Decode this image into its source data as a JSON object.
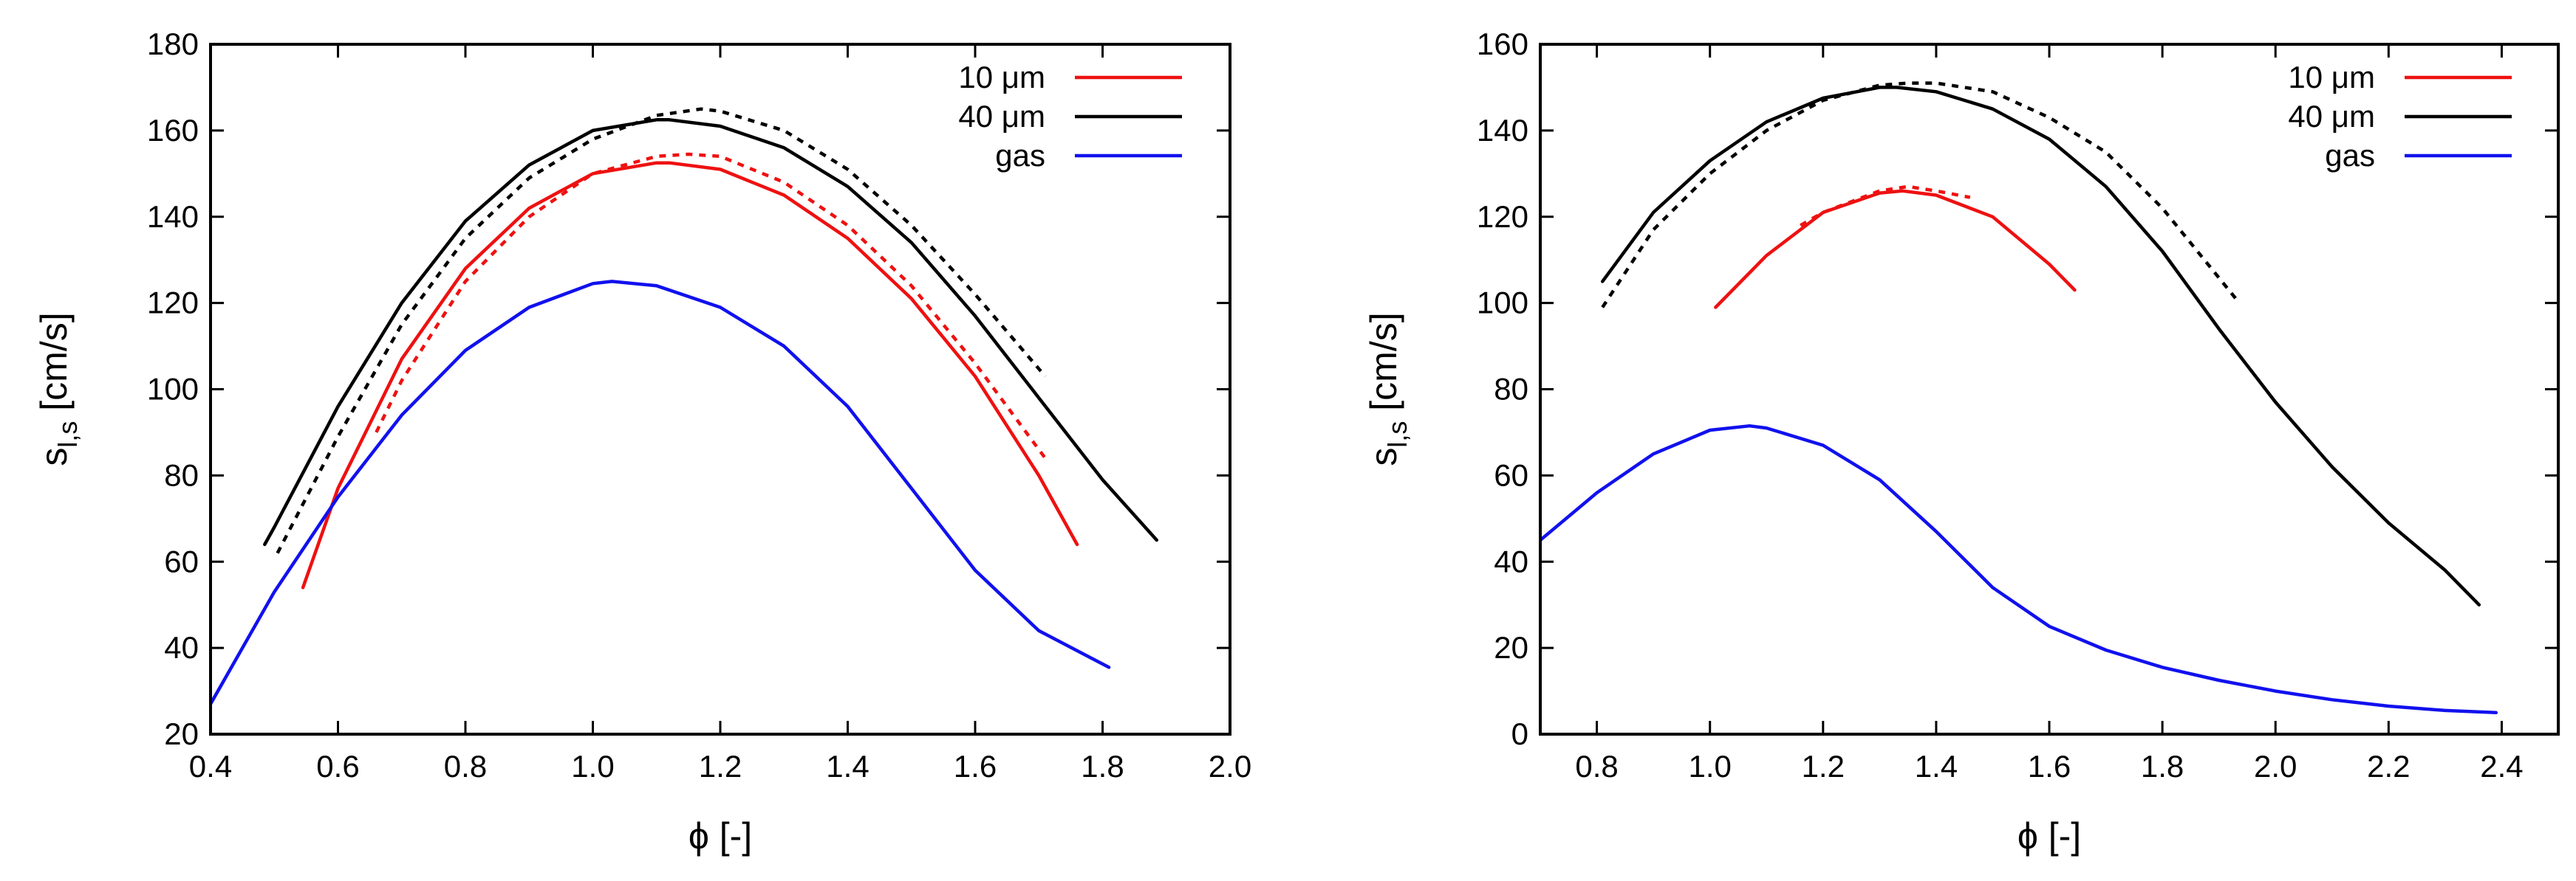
{
  "figure": {
    "description_domain": "Chart"
  },
  "colors": {
    "red": "#ee1111",
    "black": "#000000",
    "blue": "#1111ee"
  },
  "chart_data": [
    {
      "type": "line",
      "panel": "left",
      "xlabel": "ϕ [-]",
      "ylabel_main": "s",
      "ylabel_sub": "l,s",
      "ylabel_unit": " [cm/s]",
      "xlim": [
        0.4,
        2.0
      ],
      "ylim": [
        20,
        180
      ],
      "xticks": [
        "0.4",
        "0.6",
        "0.8",
        "1.0",
        "1.2",
        "1.4",
        "1.6",
        "1.8",
        "2.0"
      ],
      "yticks": [
        "20",
        "40",
        "60",
        "80",
        "100",
        "120",
        "140",
        "160",
        "180"
      ],
      "legend_position": "top-right",
      "legend": [
        {
          "label": "10 μm",
          "color": "#ee1111"
        },
        {
          "label": "40 μm",
          "color": "#000000"
        },
        {
          "label": "gas",
          "color": "#1111ee"
        }
      ],
      "series": [
        {
          "name": "10 μm",
          "style": "solid",
          "color": "#ee1111",
          "x": [
            0.545,
            0.6,
            0.7,
            0.8,
            0.9,
            1.0,
            1.1,
            1.12,
            1.2,
            1.3,
            1.4,
            1.5,
            1.6,
            1.7,
            1.76
          ],
          "y": [
            54,
            77,
            107,
            128,
            142,
            150,
            152.5,
            152.5,
            151,
            145,
            135,
            121,
            103,
            80,
            64
          ]
        },
        {
          "name": "10 μm",
          "style": "dashed",
          "color": "#ee1111",
          "x": [
            0.66,
            0.7,
            0.8,
            0.9,
            1.0,
            1.1,
            1.15,
            1.2,
            1.3,
            1.4,
            1.5,
            1.6,
            1.71
          ],
          "y": [
            90,
            102,
            125,
            140,
            150,
            154,
            154.5,
            154,
            148,
            138,
            124,
            106,
            84
          ]
        },
        {
          "name": "40 μm",
          "style": "solid",
          "color": "#000000",
          "x": [
            0.485,
            0.5,
            0.6,
            0.7,
            0.8,
            0.9,
            1.0,
            1.1,
            1.12,
            1.2,
            1.3,
            1.4,
            1.5,
            1.6,
            1.7,
            1.8,
            1.885
          ],
          "y": [
            64,
            68,
            96,
            120,
            139,
            152,
            160,
            162.5,
            162.5,
            161,
            156,
            147,
            134,
            117,
            98,
            79,
            65
          ]
        },
        {
          "name": "40 μm",
          "style": "dashed",
          "color": "#000000",
          "x": [
            0.505,
            0.6,
            0.7,
            0.8,
            0.9,
            1.0,
            1.1,
            1.17,
            1.2,
            1.3,
            1.4,
            1.5,
            1.6,
            1.71
          ],
          "y": [
            62,
            89,
            115,
            135,
            149,
            158,
            163.5,
            165,
            164.5,
            160,
            151,
            138,
            122,
            103
          ]
        },
        {
          "name": "gas",
          "style": "solid",
          "color": "#1111ee",
          "x": [
            0.4,
            0.5,
            0.6,
            0.7,
            0.8,
            0.9,
            1.0,
            1.03,
            1.1,
            1.2,
            1.3,
            1.4,
            1.5,
            1.6,
            1.7,
            1.81
          ],
          "y": [
            27,
            53,
            75,
            94,
            109,
            119,
            124.5,
            125,
            124,
            119,
            110,
            96,
            77,
            58,
            44,
            35.5
          ]
        }
      ]
    },
    {
      "type": "line",
      "panel": "right",
      "xlabel": "ϕ [-]",
      "ylabel_main": "s",
      "ylabel_sub": "l,s",
      "ylabel_unit": " [cm/s]",
      "xlim": [
        0.7,
        2.5
      ],
      "ylim": [
        0,
        160
      ],
      "xticks": [
        "0.8",
        "1.0",
        "1.2",
        "1.4",
        "1.6",
        "1.8",
        "2.0",
        "2.2",
        "2.4"
      ],
      "yticks": [
        "0",
        "20",
        "40",
        "60",
        "80",
        "100",
        "120",
        "140",
        "160"
      ],
      "legend_position": "top-right",
      "legend": [
        {
          "label": "10 μm",
          "color": "#ee1111"
        },
        {
          "label": "40 μm",
          "color": "#000000"
        },
        {
          "label": "gas",
          "color": "#1111ee"
        }
      ],
      "series": [
        {
          "name": "10 μm",
          "style": "solid",
          "color": "#ee1111",
          "x": [
            1.01,
            1.1,
            1.2,
            1.3,
            1.34,
            1.4,
            1.5,
            1.6,
            1.645
          ],
          "y": [
            99,
            111,
            121,
            125.5,
            126,
            125,
            120,
            109,
            103
          ]
        },
        {
          "name": "10 μm",
          "style": "dashed",
          "color": "#ee1111",
          "x": [
            1.16,
            1.2,
            1.3,
            1.35,
            1.4,
            1.46
          ],
          "y": [
            118,
            121,
            126,
            127,
            126,
            124.5
          ]
        },
        {
          "name": "40 μm",
          "style": "solid",
          "color": "#000000",
          "x": [
            0.81,
            0.9,
            1.0,
            1.1,
            1.2,
            1.3,
            1.33,
            1.4,
            1.5,
            1.6,
            1.7,
            1.8,
            1.9,
            2.0,
            2.1,
            2.2,
            2.3,
            2.36
          ],
          "y": [
            105,
            121,
            133,
            142,
            147.5,
            150,
            150,
            149,
            145,
            138,
            127,
            112,
            94,
            77,
            62,
            49,
            38,
            30
          ]
        },
        {
          "name": "40 μm",
          "style": "dashed",
          "color": "#000000",
          "x": [
            0.81,
            0.9,
            1.0,
            1.1,
            1.2,
            1.3,
            1.35,
            1.4,
            1.5,
            1.6,
            1.7,
            1.8,
            1.93
          ],
          "y": [
            99,
            117,
            130,
            140,
            147,
            150.5,
            151,
            151,
            149,
            143,
            135,
            122,
            101
          ]
        },
        {
          "name": "gas",
          "style": "solid",
          "color": "#1111ee",
          "x": [
            0.7,
            0.8,
            0.9,
            1.0,
            1.07,
            1.1,
            1.2,
            1.3,
            1.4,
            1.5,
            1.6,
            1.7,
            1.8,
            1.9,
            2.0,
            2.1,
            2.2,
            2.3,
            2.39
          ],
          "y": [
            45,
            56,
            65,
            70.5,
            71.5,
            71,
            67,
            59,
            47,
            34,
            25,
            19.5,
            15.5,
            12.5,
            10,
            8,
            6.5,
            5.5,
            5
          ]
        }
      ]
    }
  ]
}
